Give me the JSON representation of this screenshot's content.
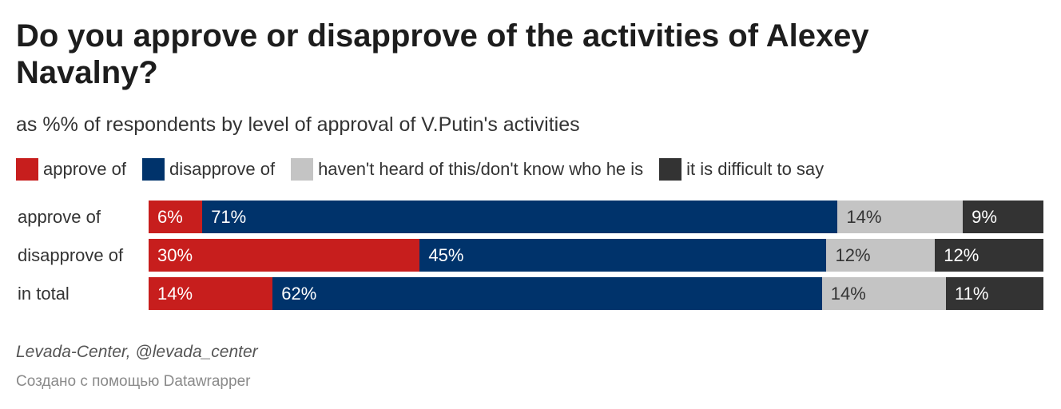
{
  "chart_data": {
    "type": "bar",
    "stacked": true,
    "orientation": "horizontal",
    "title": "Do you approve or disapprove of the activities of Alexey Navalny?",
    "subtitle": "as %% of respondents by level of approval of V.Putin's activities",
    "legend_placement": "top-left",
    "categories": [
      "approve of",
      "disapprove of",
      "in total"
    ],
    "series": [
      {
        "name": "approve of",
        "color": "#c71e1d",
        "label_color": "#ffffff",
        "values": [
          6,
          30,
          14
        ]
      },
      {
        "name": "disapprove of",
        "color": "#00336b",
        "label_color": "#ffffff",
        "values": [
          71,
          45,
          62
        ]
      },
      {
        "name": "haven't heard of this/don't know who he is",
        "color": "#c4c4c4",
        "label_color": "#333333",
        "values": [
          14,
          12,
          14
        ]
      },
      {
        "name": "it is difficult to say",
        "color": "#333333",
        "label_color": "#ffffff",
        "values": [
          9,
          12,
          11
        ]
      }
    ],
    "value_suffix": "%",
    "xlim": [
      0,
      100
    ]
  },
  "footer": {
    "source": "Levada-Center, @levada_center",
    "credit": "Создано с помощью Datawrapper"
  }
}
